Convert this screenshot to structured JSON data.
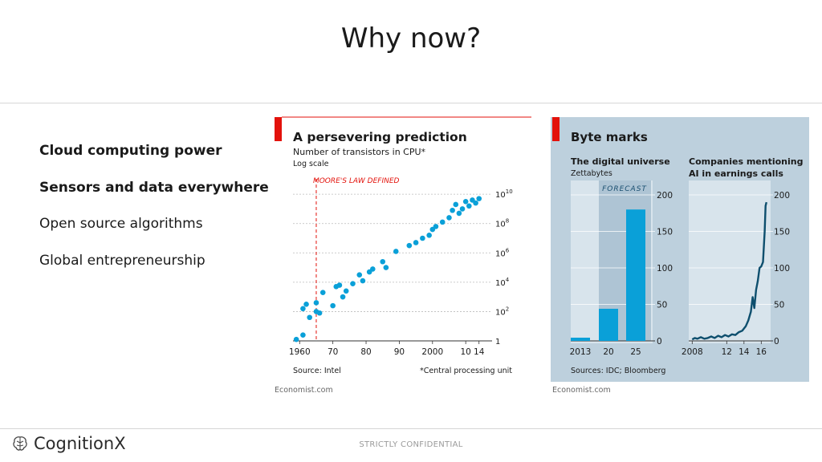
{
  "slide": {
    "title": "Why now?",
    "bullets": [
      {
        "text": "Cloud computing power",
        "bold": true
      },
      {
        "text": "Sensors and data everywhere",
        "bold": true
      },
      {
        "text": "Open source algorithms",
        "bold": false
      },
      {
        "text": "Global entrepreneurship",
        "bold": false
      }
    ],
    "footer": {
      "brand": "CognitionX",
      "confidential": "STRICTLY CONFIDENTIAL"
    }
  },
  "colors": {
    "accent_red": "#e3120b",
    "dot_blue": "#0aa0d8",
    "line_blue": "#0e4f6e",
    "panel_bg": "#bdd0dd"
  },
  "chart_data": [
    {
      "type": "scatter",
      "title": "A persevering prediction",
      "subtitle": "Number of transistors in CPU*",
      "scale_note": "Log scale",
      "annotation": "MOORE'S LAW DEFINED",
      "annotation_x": 1965,
      "source": "Source: Intel",
      "footnote": "*Central processing unit",
      "credit": "Economist.com",
      "x_ticks": [
        "1960",
        "70",
        "80",
        "90",
        "2000",
        "10",
        "14"
      ],
      "x_tick_values": [
        1960,
        1970,
        1980,
        1990,
        2000,
        2010,
        2014
      ],
      "y_ticks": [
        {
          "base": "1",
          "exp": ""
        },
        {
          "base": "10",
          "exp": "2"
        },
        {
          "base": "10",
          "exp": "4"
        },
        {
          "base": "10",
          "exp": "6"
        },
        {
          "base": "10",
          "exp": "8"
        },
        {
          "base": "10",
          "exp": "10"
        }
      ],
      "y_tick_log": [
        0,
        2,
        4,
        6,
        8,
        10
      ],
      "xlim": [
        1958,
        2016
      ],
      "ylim_log": [
        0,
        10.5
      ],
      "points": [
        {
          "x": 1959,
          "log10_y": 0.1
        },
        {
          "x": 1961,
          "log10_y": 0.4
        },
        {
          "x": 1961,
          "log10_y": 2.2
        },
        {
          "x": 1962,
          "log10_y": 2.5
        },
        {
          "x": 1963,
          "log10_y": 1.6
        },
        {
          "x": 1965,
          "log10_y": 2.0
        },
        {
          "x": 1965,
          "log10_y": 2.6
        },
        {
          "x": 1966,
          "log10_y": 1.9
        },
        {
          "x": 1967,
          "log10_y": 3.3
        },
        {
          "x": 1970,
          "log10_y": 2.4
        },
        {
          "x": 1971,
          "log10_y": 3.7
        },
        {
          "x": 1972,
          "log10_y": 3.8
        },
        {
          "x": 1973,
          "log10_y": 3.0
        },
        {
          "x": 1974,
          "log10_y": 3.4
        },
        {
          "x": 1976,
          "log10_y": 3.9
        },
        {
          "x": 1978,
          "log10_y": 4.5
        },
        {
          "x": 1979,
          "log10_y": 4.1
        },
        {
          "x": 1981,
          "log10_y": 4.7
        },
        {
          "x": 1982,
          "log10_y": 4.9
        },
        {
          "x": 1985,
          "log10_y": 5.4
        },
        {
          "x": 1986,
          "log10_y": 5.0
        },
        {
          "x": 1989,
          "log10_y": 6.1
        },
        {
          "x": 1993,
          "log10_y": 6.5
        },
        {
          "x": 1995,
          "log10_y": 6.7
        },
        {
          "x": 1997,
          "log10_y": 7.0
        },
        {
          "x": 1999,
          "log10_y": 7.2
        },
        {
          "x": 2000,
          "log10_y": 7.6
        },
        {
          "x": 2001,
          "log10_y": 7.8
        },
        {
          "x": 2003,
          "log10_y": 8.1
        },
        {
          "x": 2005,
          "log10_y": 8.4
        },
        {
          "x": 2006,
          "log10_y": 8.9
        },
        {
          "x": 2007,
          "log10_y": 9.3
        },
        {
          "x": 2008,
          "log10_y": 8.7
        },
        {
          "x": 2009,
          "log10_y": 9.0
        },
        {
          "x": 2010,
          "log10_y": 9.5
        },
        {
          "x": 2011,
          "log10_y": 9.2
        },
        {
          "x": 2012,
          "log10_y": 9.6
        },
        {
          "x": 2013,
          "log10_y": 9.4
        },
        {
          "x": 2014,
          "log10_y": 9.7
        }
      ]
    },
    {
      "type": "bar",
      "group_title": "Byte marks",
      "title": "The digital universe",
      "unit": "Zettabytes",
      "forecast_label": "FORECAST",
      "categories": [
        "2013",
        "20",
        "25"
      ],
      "values": [
        4.4,
        44,
        180
      ],
      "ylim": [
        0,
        200
      ],
      "y_ticks": [
        0,
        50,
        100,
        150,
        200
      ],
      "source": "Sources: IDC; Bloomberg",
      "credit": "Economist.com"
    },
    {
      "type": "line",
      "title_line1": "Companies mentioning",
      "title_line2": "AI in earnings calls",
      "x_ticks": [
        "2008",
        "12",
        "14",
        "16"
      ],
      "x_tick_values": [
        2008,
        2012,
        2014,
        2016
      ],
      "xlim": [
        2007.6,
        2016.9
      ],
      "ylim": [
        0,
        200
      ],
      "y_ticks": [
        0,
        50,
        100,
        150,
        200
      ],
      "x": [
        2008,
        2008.3,
        2008.6,
        2009,
        2009.4,
        2009.8,
        2010.2,
        2010.6,
        2011,
        2011.4,
        2011.8,
        2012.2,
        2012.6,
        2013,
        2013.4,
        2013.8,
        2014.2,
        2014.5,
        2014.8,
        2015,
        2015.2,
        2015.4,
        2015.6,
        2015.8,
        2016,
        2016.2,
        2016.4,
        2016.5,
        2016.6
      ],
      "y": [
        2,
        4,
        3,
        5,
        3,
        4,
        6,
        4,
        7,
        5,
        8,
        6,
        9,
        8,
        12,
        14,
        20,
        28,
        40,
        60,
        45,
        70,
        82,
        100,
        102,
        108,
        150,
        185,
        190
      ]
    }
  ]
}
